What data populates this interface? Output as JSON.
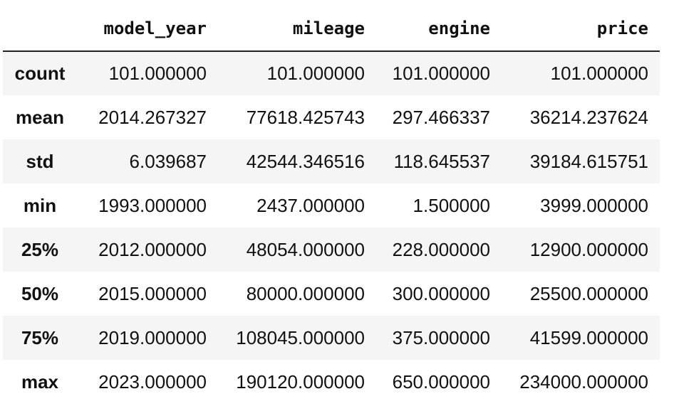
{
  "table": {
    "index_header": "",
    "columns": [
      "model_year",
      "mileage",
      "engine",
      "price"
    ],
    "rows": [
      {
        "label": "count",
        "values": [
          "101.000000",
          "101.000000",
          "101.000000",
          "101.000000"
        ]
      },
      {
        "label": "mean",
        "values": [
          "2014.267327",
          "77618.425743",
          "297.466337",
          "36214.237624"
        ]
      },
      {
        "label": "std",
        "values": [
          "6.039687",
          "42544.346516",
          "118.645537",
          "39184.615751"
        ]
      },
      {
        "label": "min",
        "values": [
          "1993.000000",
          "2437.000000",
          "1.500000",
          "3999.000000"
        ]
      },
      {
        "label": "25%",
        "values": [
          "2012.000000",
          "48054.000000",
          "228.000000",
          "12900.000000"
        ]
      },
      {
        "label": "50%",
        "values": [
          "2015.000000",
          "80000.000000",
          "300.000000",
          "25500.000000"
        ]
      },
      {
        "label": "75%",
        "values": [
          "2019.000000",
          "108045.000000",
          "375.000000",
          "41599.000000"
        ]
      },
      {
        "label": "max",
        "values": [
          "2023.000000",
          "190120.000000",
          "650.000000",
          "234000.000000"
        ]
      }
    ]
  },
  "colors": {
    "stripe": "#f5f5f5",
    "background": "#ffffff",
    "text": "#111111",
    "header_rule": "#222222"
  }
}
